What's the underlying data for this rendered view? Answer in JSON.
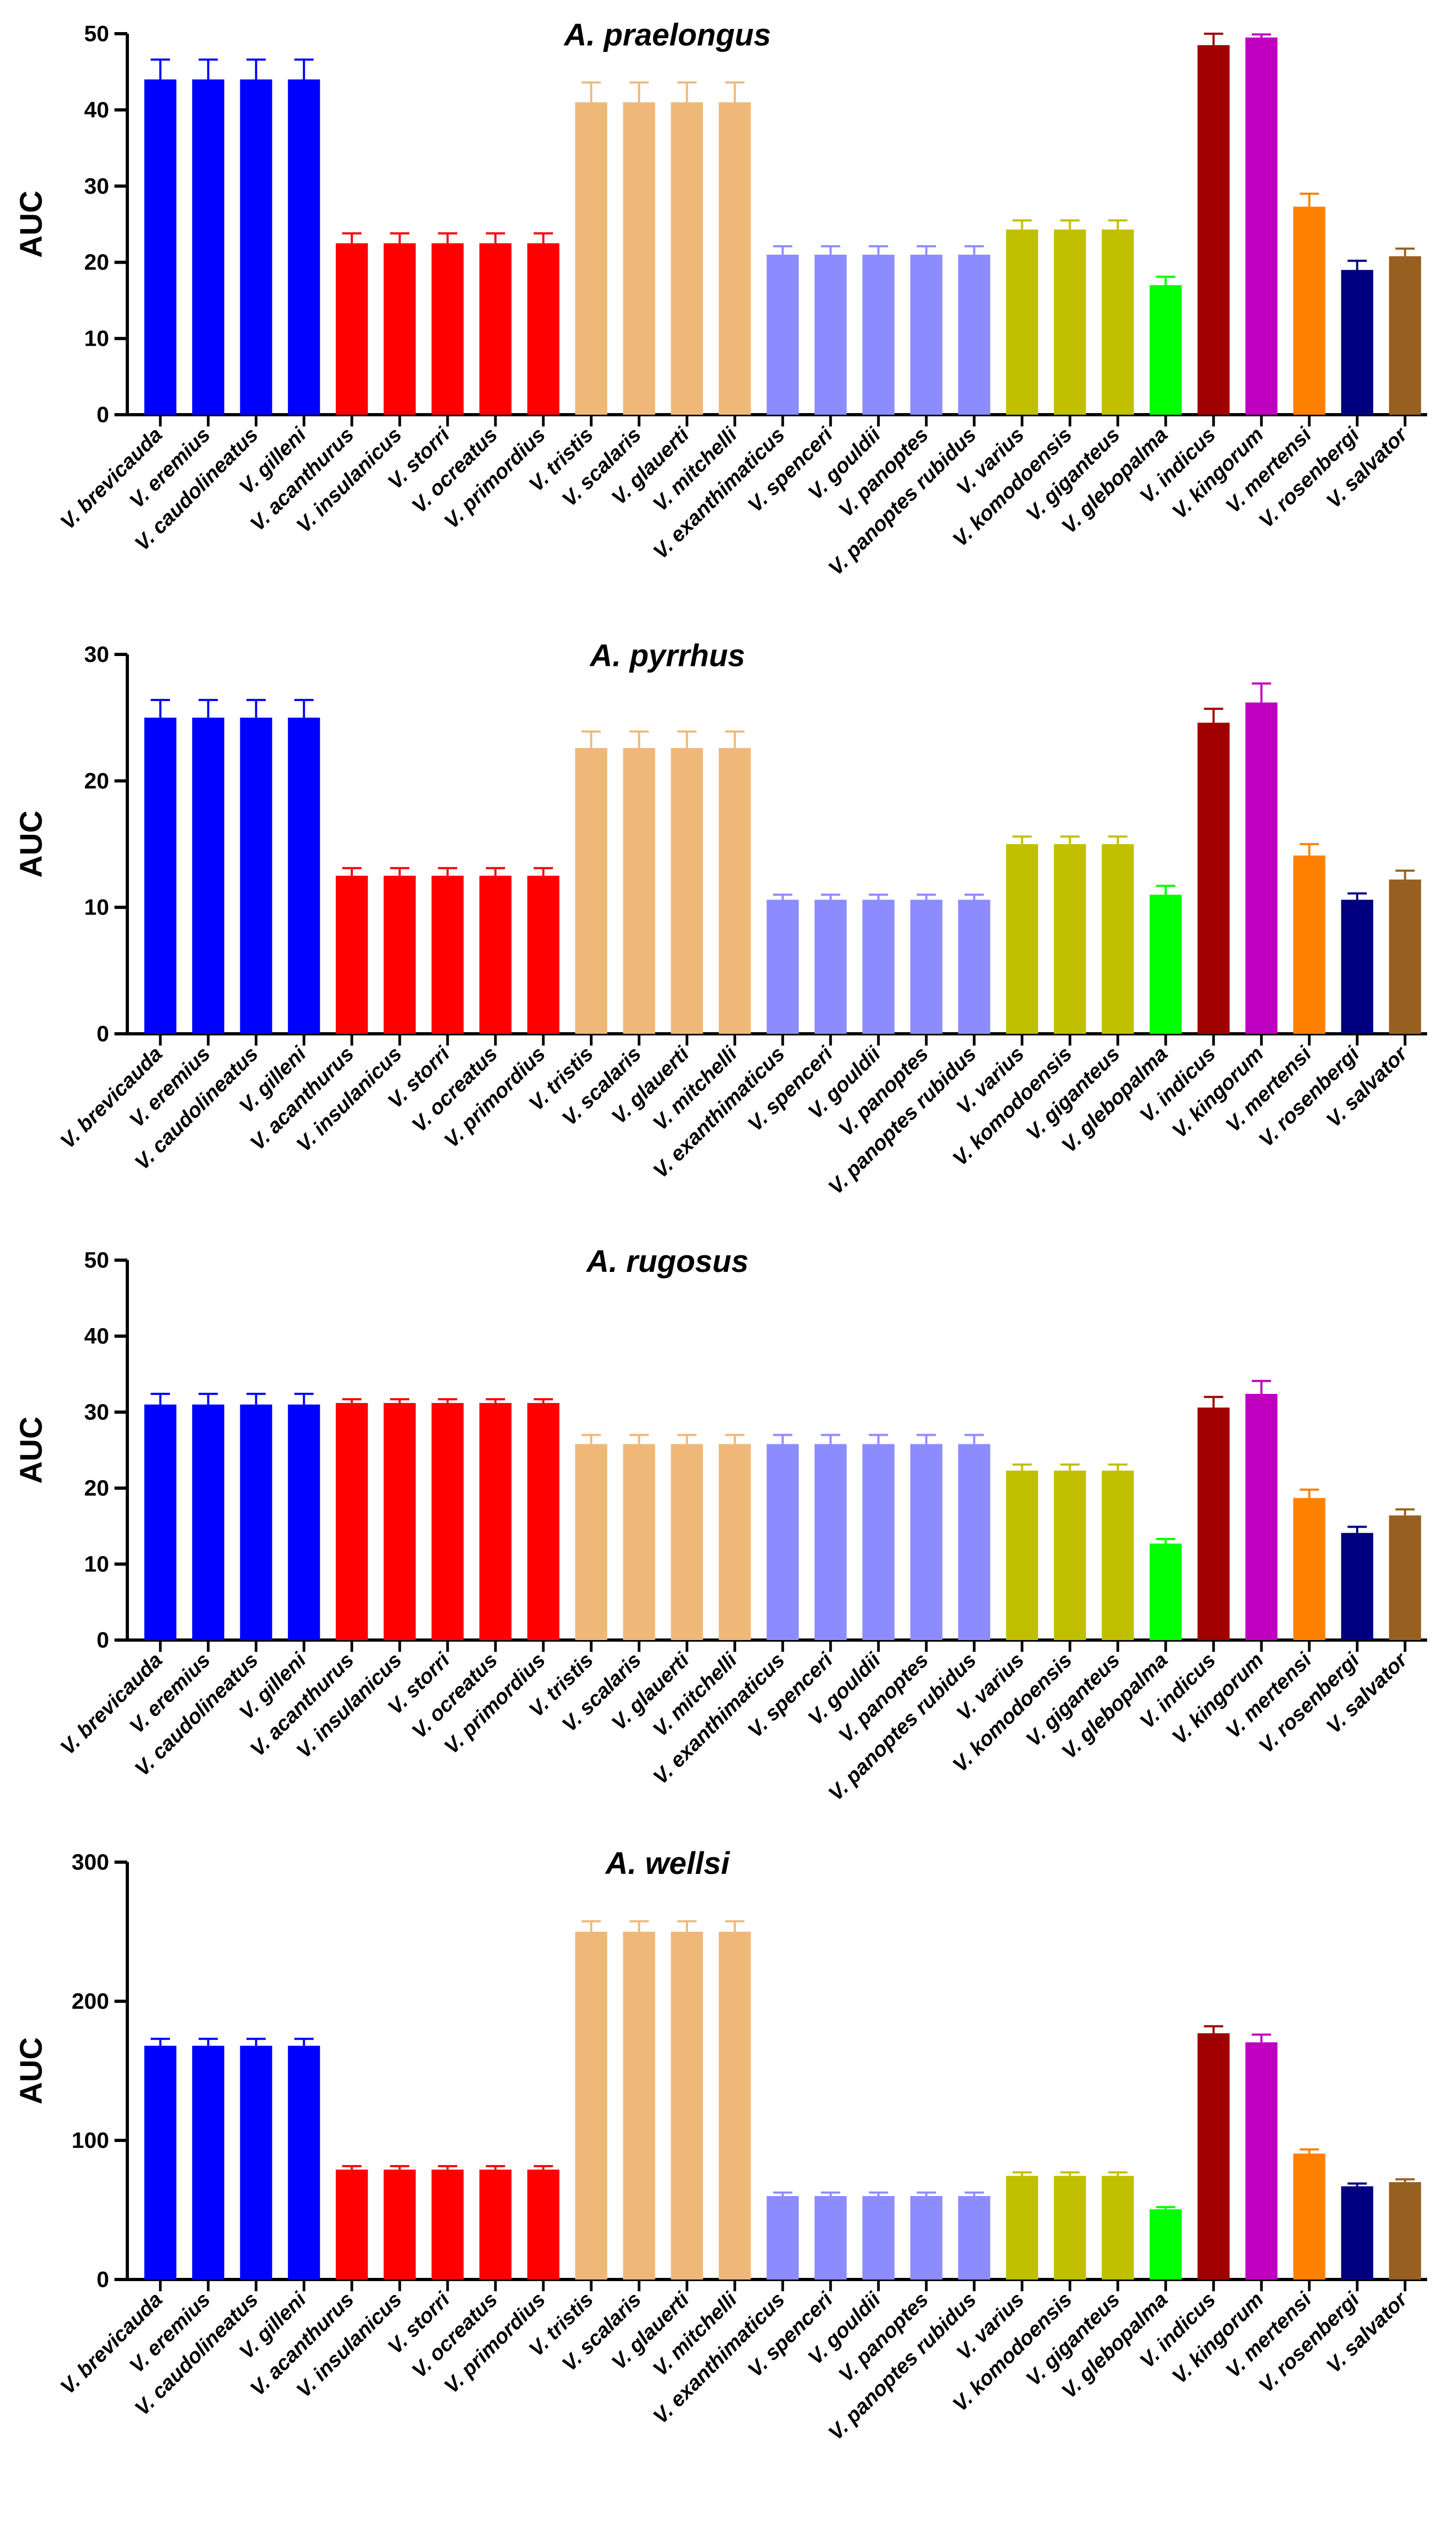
{
  "colors": {
    "blue": "#0000ff",
    "red": "#ff0000",
    "tan": "#f0b878",
    "lavender": "#8c8cff",
    "olive": "#c0c000",
    "green": "#00ff00",
    "darkred": "#a00000",
    "magenta": "#c000c0",
    "orange": "#ff8000",
    "navy": "#000080",
    "brown": "#986020"
  },
  "chart_data": [
    {
      "type": "bar",
      "title": "A. praelongus",
      "xlabel": "",
      "ylabel": "AUC",
      "ylim": [
        0,
        50
      ],
      "yticks": [
        0,
        10,
        20,
        30,
        40,
        50
      ],
      "categories": [
        "V. brevicauda",
        "V. eremius",
        "V. caudolineatus",
        "V. gilleni",
        "V. acanthurus",
        "V. insulanicus",
        "V. storri",
        "V. ocreatus",
        "V. primordius",
        "V. tristis",
        "V. scalaris",
        "V. glauerti",
        "V. mitchelli",
        "V. exanthimaticus",
        "V. spenceri",
        "V. gouldii",
        "V. panoptes",
        "V. panoptes rubidus",
        "V. varius",
        "V. komodoensis",
        "V. giganteus",
        "V. glebopalma",
        "V. indicus",
        "V. kingorum",
        "V. mertensi",
        "V. rosenbergi",
        "V. salvator"
      ],
      "values": [
        44,
        44,
        44,
        44,
        22.5,
        22.5,
        22.5,
        22.5,
        22.5,
        41,
        41,
        41,
        41,
        21,
        21,
        21,
        21,
        21,
        24.3,
        24.3,
        24.3,
        17,
        48.5,
        49.5,
        27.3,
        19,
        20.8
      ],
      "errors": [
        2.6,
        2.6,
        2.6,
        2.6,
        1.3,
        1.3,
        1.3,
        1.3,
        1.3,
        2.6,
        2.6,
        2.6,
        2.6,
        1.1,
        1.1,
        1.1,
        1.1,
        1.1,
        1.2,
        1.2,
        1.2,
        1.1,
        1.5,
        0.4,
        1.7,
        1.2,
        1.0
      ],
      "bar_colors": [
        "blue",
        "blue",
        "blue",
        "blue",
        "red",
        "red",
        "red",
        "red",
        "red",
        "tan",
        "tan",
        "tan",
        "tan",
        "lavender",
        "lavender",
        "lavender",
        "lavender",
        "lavender",
        "olive",
        "olive",
        "olive",
        "green",
        "darkred",
        "magenta",
        "orange",
        "navy",
        "brown"
      ]
    },
    {
      "type": "bar",
      "title": "A. pyrrhus",
      "xlabel": "",
      "ylabel": "AUC",
      "ylim": [
        0,
        30
      ],
      "yticks": [
        0,
        10,
        20,
        30
      ],
      "categories": [
        "V. brevicauda",
        "V. eremius",
        "V. caudolineatus",
        "V. gilleni",
        "V. acanthurus",
        "V. insulanicus",
        "V. storri",
        "V. ocreatus",
        "V. primordius",
        "V. tristis",
        "V. scalaris",
        "V. glauerti",
        "V. mitchelli",
        "V. exanthimaticus",
        "V. spenceri",
        "V. gouldii",
        "V. panoptes",
        "V. panoptes rubidus",
        "V. varius",
        "V. komodoensis",
        "V. giganteus",
        "V. glebopalma",
        "V. indicus",
        "V. kingorum",
        "V. mertensi",
        "V. rosenbergi",
        "V. salvator"
      ],
      "values": [
        25,
        25,
        25,
        25,
        12.5,
        12.5,
        12.5,
        12.5,
        12.5,
        22.6,
        22.6,
        22.6,
        22.6,
        10.6,
        10.6,
        10.6,
        10.6,
        10.6,
        15,
        15,
        15,
        11,
        24.6,
        26.2,
        14.1,
        10.6,
        12.2
      ],
      "errors": [
        1.4,
        1.4,
        1.4,
        1.4,
        0.6,
        0.6,
        0.6,
        0.6,
        0.6,
        1.3,
        1.3,
        1.3,
        1.3,
        0.4,
        0.4,
        0.4,
        0.4,
        0.4,
        0.6,
        0.6,
        0.6,
        0.7,
        1.1,
        1.5,
        0.9,
        0.5,
        0.7
      ],
      "bar_colors": [
        "blue",
        "blue",
        "blue",
        "blue",
        "red",
        "red",
        "red",
        "red",
        "red",
        "tan",
        "tan",
        "tan",
        "tan",
        "lavender",
        "lavender",
        "lavender",
        "lavender",
        "lavender",
        "olive",
        "olive",
        "olive",
        "green",
        "darkred",
        "magenta",
        "orange",
        "navy",
        "brown"
      ]
    },
    {
      "type": "bar",
      "title": "A. rugosus",
      "xlabel": "",
      "ylabel": "AUC",
      "ylim": [
        0,
        50
      ],
      "yticks": [
        0,
        10,
        20,
        30,
        40,
        50
      ],
      "categories": [
        "V. brevicauda",
        "V. eremius",
        "V. caudolineatus",
        "V. gilleni",
        "V. acanthurus",
        "V. insulanicus",
        "V. storri",
        "V. ocreatus",
        "V. primordius",
        "V. tristis",
        "V. scalaris",
        "V. glauerti",
        "V. mitchelli",
        "V. exanthimaticus",
        "V. spenceri",
        "V. gouldii",
        "V. panoptes",
        "V. panoptes rubidus",
        "V. varius",
        "V. komodoensis",
        "V. giganteus",
        "V. glebopalma",
        "V. indicus",
        "V. kingorum",
        "V. mertensi",
        "V. rosenbergi",
        "V. salvator"
      ],
      "values": [
        31,
        31,
        31,
        31,
        31.2,
        31.2,
        31.2,
        31.2,
        31.2,
        25.8,
        25.8,
        25.8,
        25.8,
        25.8,
        25.8,
        25.8,
        25.8,
        25.8,
        22.3,
        22.3,
        22.3,
        12.7,
        30.6,
        32.4,
        18.7,
        14.1,
        16.4
      ],
      "errors": [
        1.4,
        1.4,
        1.4,
        1.4,
        0.5,
        0.5,
        0.5,
        0.5,
        0.5,
        1.2,
        1.2,
        1.2,
        1.2,
        1.2,
        1.2,
        1.2,
        1.2,
        1.2,
        0.8,
        0.8,
        0.8,
        0.6,
        1.4,
        1.7,
        1.1,
        0.8,
        0.8
      ],
      "bar_colors": [
        "blue",
        "blue",
        "blue",
        "blue",
        "red",
        "red",
        "red",
        "red",
        "red",
        "tan",
        "tan",
        "tan",
        "tan",
        "lavender",
        "lavender",
        "lavender",
        "lavender",
        "lavender",
        "olive",
        "olive",
        "olive",
        "green",
        "darkred",
        "magenta",
        "orange",
        "navy",
        "brown"
      ]
    },
    {
      "type": "bar",
      "title": "A. wellsi",
      "xlabel": "",
      "ylabel": "AUC",
      "ylim": [
        0,
        300
      ],
      "yticks": [
        0,
        100,
        200,
        300
      ],
      "categories": [
        "V. brevicauda",
        "V. eremius",
        "V. caudolineatus",
        "V. gilleni",
        "V. acanthurus",
        "V. insulanicus",
        "V. storri",
        "V. ocreatus",
        "V. primordius",
        "V. tristis",
        "V. scalaris",
        "V. glauerti",
        "V. mitchelli",
        "V. exanthimaticus",
        "V. spenceri",
        "V. gouldii",
        "V. panoptes",
        "V. panoptes rubidus",
        "V. varius",
        "V. komodoensis",
        "V. giganteus",
        "V. glebopalma",
        "V. indicus",
        "V. kingorum",
        "V. mertensi",
        "V. rosenbergi",
        "V. salvator"
      ],
      "values": [
        168,
        168,
        168,
        168,
        79,
        79,
        79,
        79,
        79,
        250,
        250,
        250,
        250,
        60,
        60,
        60,
        60,
        60,
        74.5,
        74.5,
        74.5,
        50.5,
        177,
        170.5,
        90.5,
        67,
        70
      ],
      "errors": [
        5,
        5,
        5,
        5,
        2.5,
        2.5,
        2.5,
        2.5,
        2.5,
        7.5,
        7.5,
        7.5,
        7.5,
        2.5,
        2.5,
        2.5,
        2.5,
        2.5,
        2.5,
        2.5,
        2.5,
        1.5,
        5,
        5.5,
        3,
        2,
        2
      ],
      "bar_colors": [
        "blue",
        "blue",
        "blue",
        "blue",
        "red",
        "red",
        "red",
        "red",
        "red",
        "tan",
        "tan",
        "tan",
        "tan",
        "lavender",
        "lavender",
        "lavender",
        "lavender",
        "lavender",
        "olive",
        "olive",
        "olive",
        "green",
        "darkred",
        "magenta",
        "orange",
        "navy",
        "brown"
      ]
    }
  ]
}
